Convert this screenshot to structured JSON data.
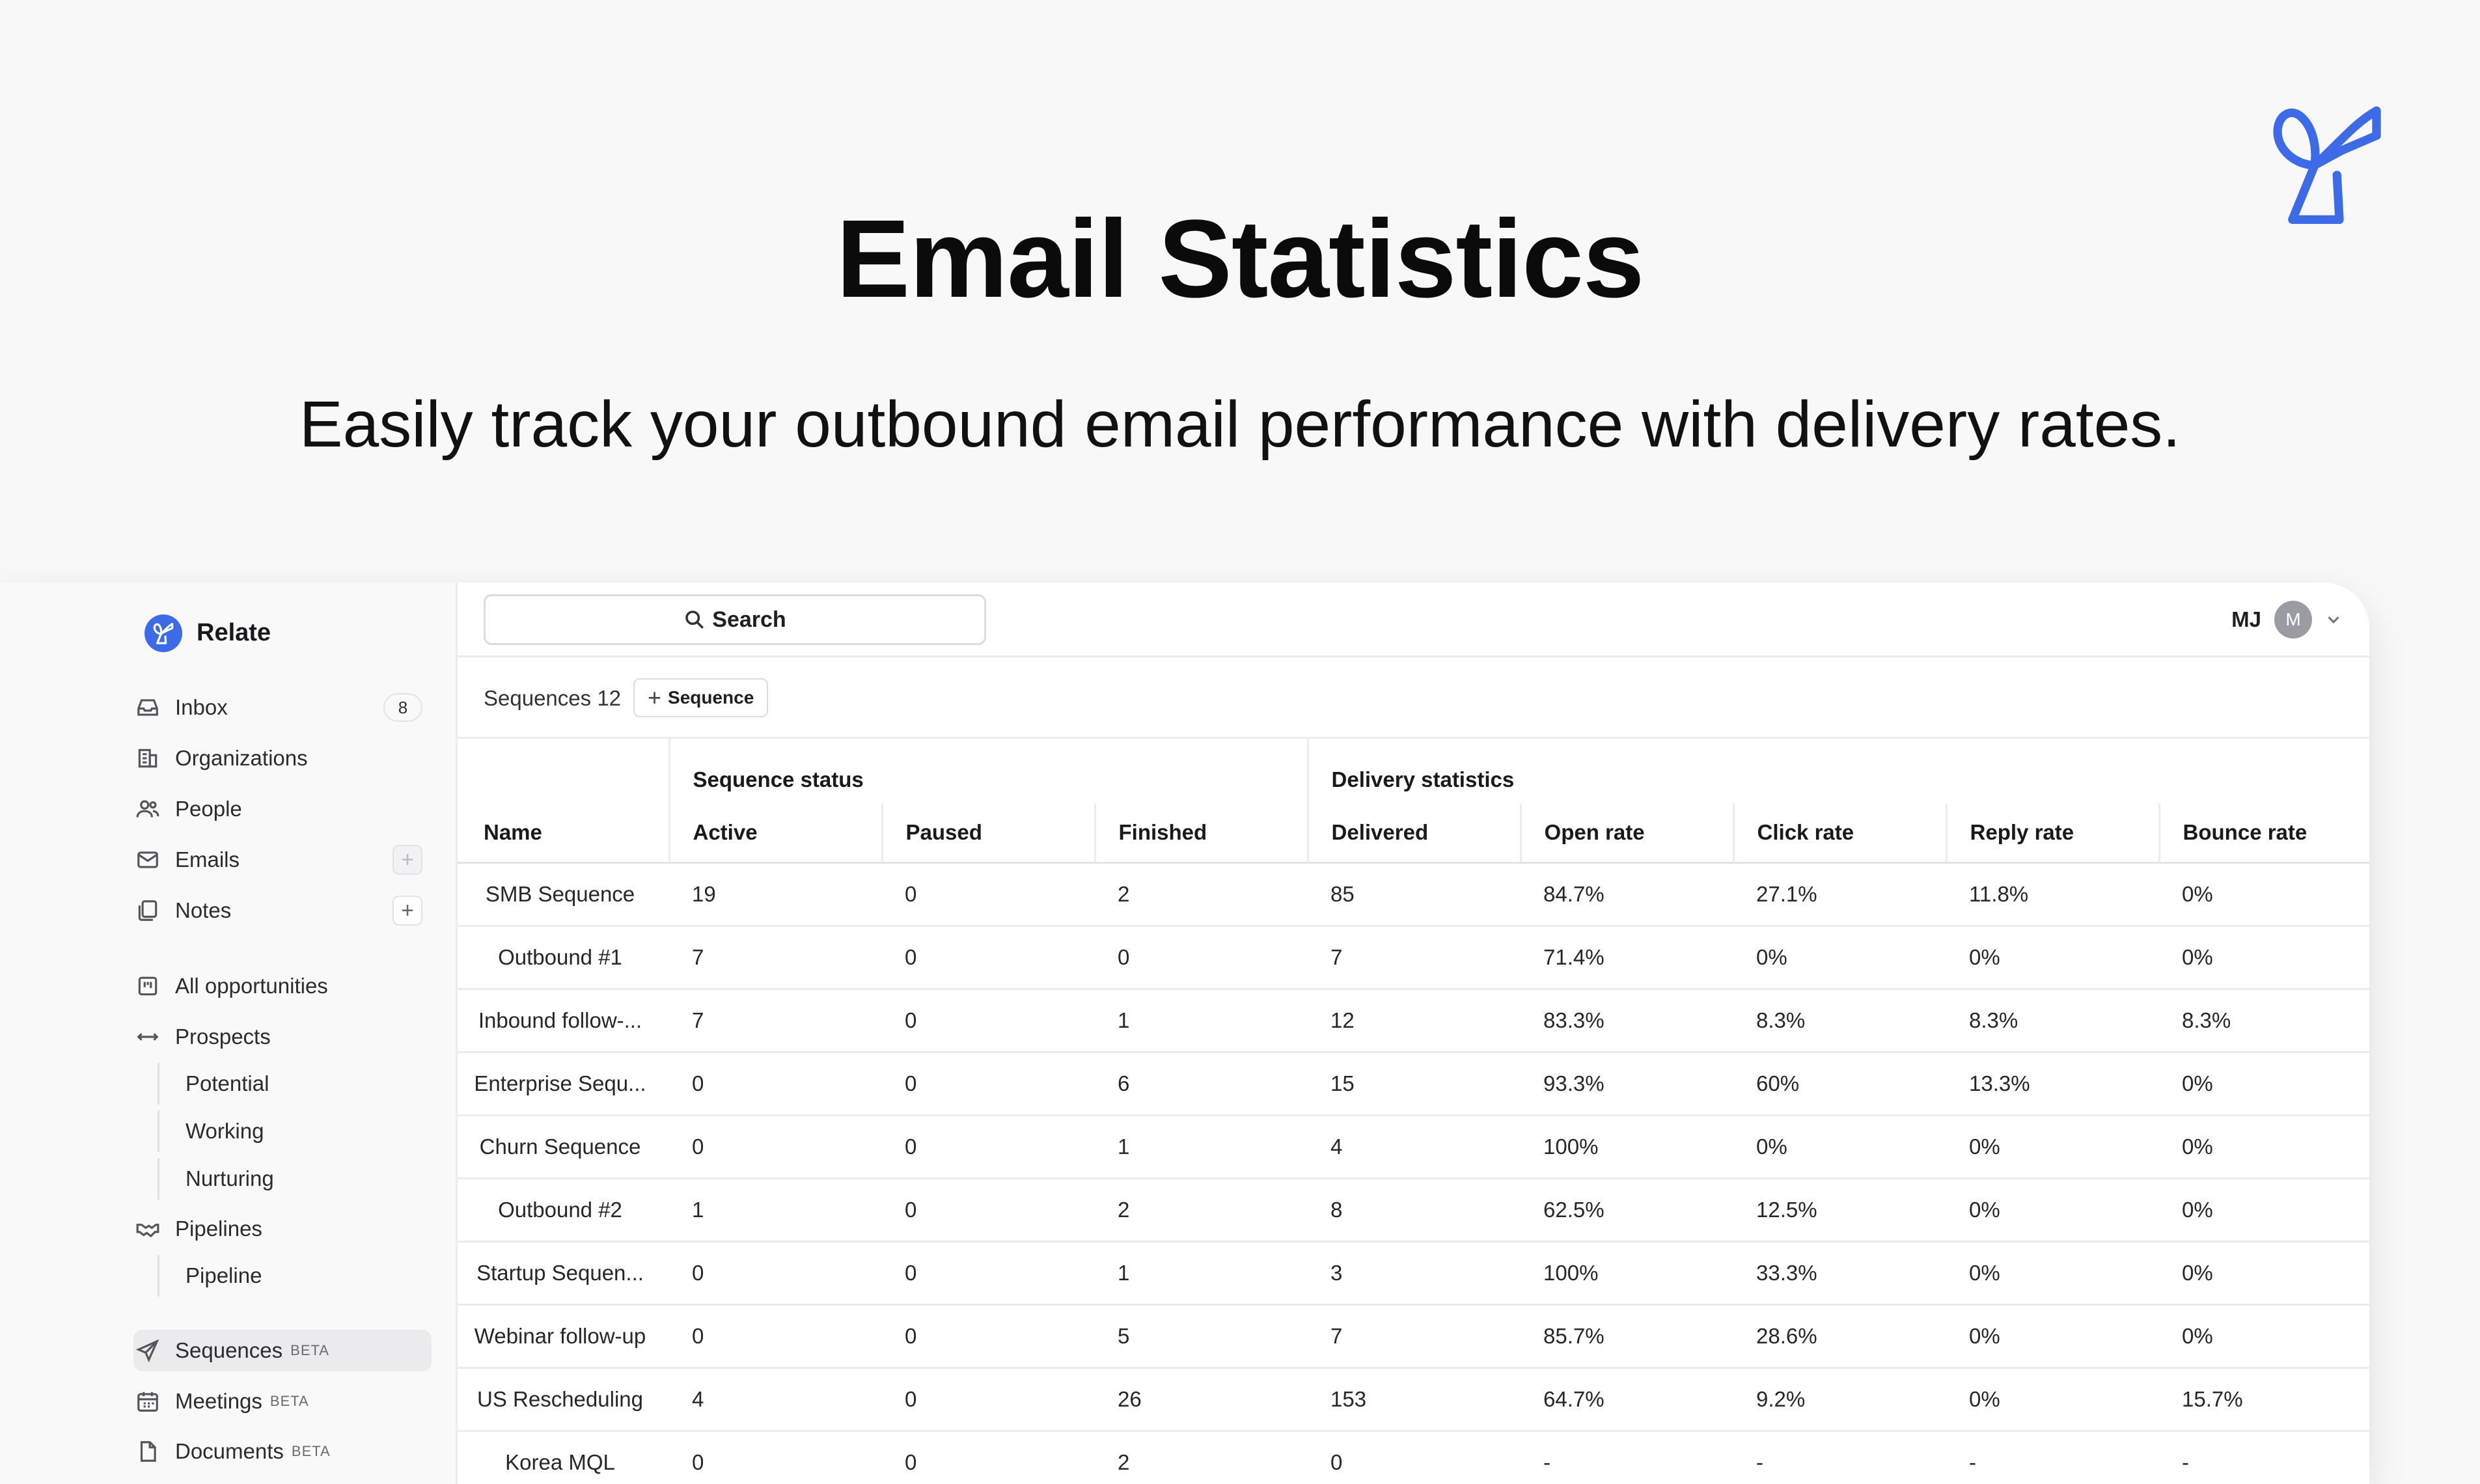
{
  "hero": {
    "title": "Email Statistics",
    "subtitle": "Easily track your outbound email performance with delivery rates."
  },
  "brand": {
    "color": "#3d6be8",
    "logo_icon": "relate-ribbon-logo"
  },
  "sidebar": {
    "workspace": "Relate",
    "items": [
      {
        "label": "Inbox",
        "icon": "inbox-icon",
        "badge": "8"
      },
      {
        "label": "Organizations",
        "icon": "building-icon"
      },
      {
        "label": "People",
        "icon": "people-icon"
      },
      {
        "label": "Emails",
        "icon": "mail-icon"
      },
      {
        "label": "Notes",
        "icon": "notes-icon"
      },
      {
        "label": "All opportunities",
        "icon": "board-icon"
      },
      {
        "label": "Prospects",
        "icon": "arrows-icon"
      },
      {
        "label": "Potential"
      },
      {
        "label": "Working"
      },
      {
        "label": "Nurturing"
      },
      {
        "label": "Pipelines",
        "icon": "handshake-icon"
      },
      {
        "label": "Pipeline"
      },
      {
        "label": "Sequences",
        "icon": "send-icon",
        "tag": "BETA"
      },
      {
        "label": "Meetings",
        "icon": "calendar-icon",
        "tag": "BETA"
      },
      {
        "label": "Documents",
        "icon": "document-icon",
        "tag": "BETA"
      }
    ]
  },
  "topbar": {
    "search_label": "Search",
    "user_initials": "MJ",
    "avatar_letter": "M"
  },
  "subbar": {
    "title": "Sequences",
    "count": "12",
    "add_label": "Sequence"
  },
  "table": {
    "groups": {
      "status": "Sequence status",
      "delivery": "Delivery statistics"
    },
    "columns": [
      "Name",
      "Active",
      "Paused",
      "Finished",
      "Delivered",
      "Open rate",
      "Click rate",
      "Reply rate",
      "Bounce rate"
    ],
    "rows": [
      [
        "SMB Sequence",
        "19",
        "0",
        "2",
        "85",
        "84.7%",
        "27.1%",
        "11.8%",
        "0%"
      ],
      [
        "Outbound #1",
        "7",
        "0",
        "0",
        "7",
        "71.4%",
        "0%",
        "0%",
        "0%"
      ],
      [
        "Inbound follow-...",
        "7",
        "0",
        "1",
        "12",
        "83.3%",
        "8.3%",
        "8.3%",
        "8.3%"
      ],
      [
        "Enterprise Sequ...",
        "0",
        "0",
        "6",
        "15",
        "93.3%",
        "60%",
        "13.3%",
        "0%"
      ],
      [
        "Churn Sequence",
        "0",
        "0",
        "1",
        "4",
        "100%",
        "0%",
        "0%",
        "0%"
      ],
      [
        "Outbound #2",
        "1",
        "0",
        "2",
        "8",
        "62.5%",
        "12.5%",
        "0%",
        "0%"
      ],
      [
        "Startup Sequen...",
        "0",
        "0",
        "1",
        "3",
        "100%",
        "33.3%",
        "0%",
        "0%"
      ],
      [
        "Webinar follow-up",
        "0",
        "0",
        "5",
        "7",
        "85.7%",
        "28.6%",
        "0%",
        "0%"
      ],
      [
        "US Rescheduling",
        "4",
        "0",
        "26",
        "153",
        "64.7%",
        "9.2%",
        "0%",
        "15.7%"
      ],
      [
        "Korea MQL",
        "0",
        "0",
        "2",
        "0",
        "-",
        "-",
        "-",
        "-"
      ]
    ]
  }
}
